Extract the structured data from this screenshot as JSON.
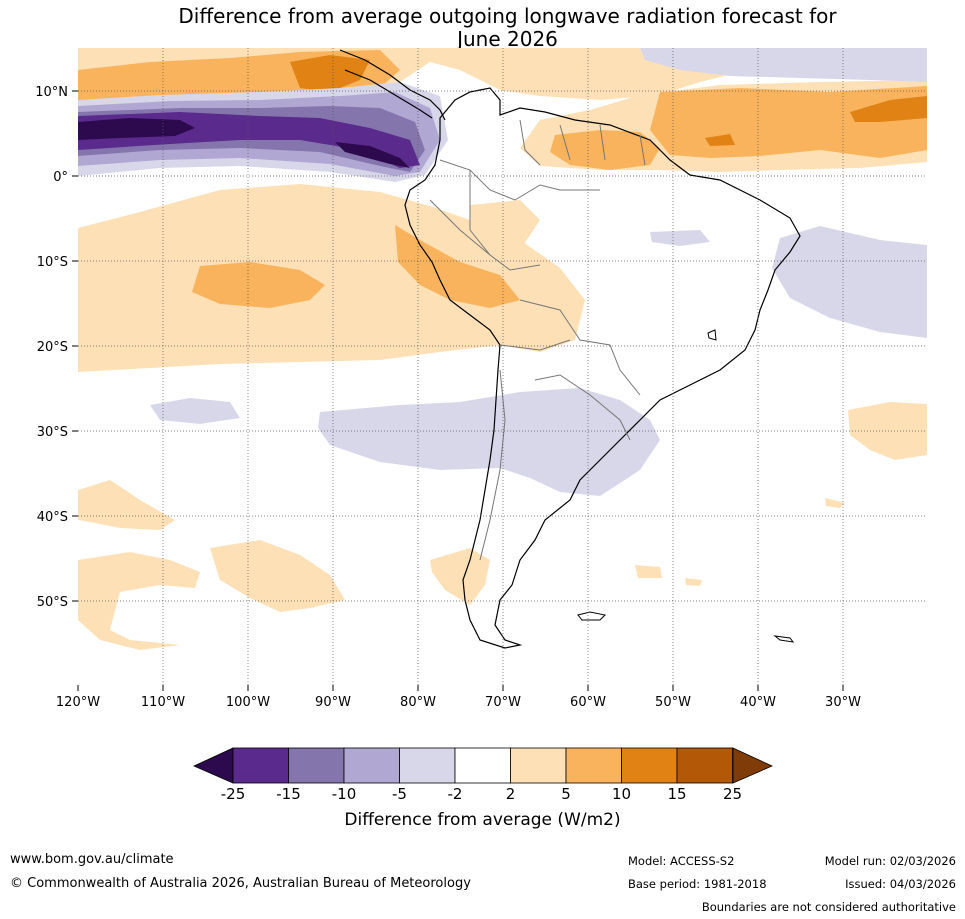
{
  "title": {
    "line1": "Difference from average outgoing longwave radiation forecast for",
    "line2": "June 2026"
  },
  "map": {
    "lat_labels": [
      "10°N",
      "0°",
      "10°S",
      "20°S",
      "30°S",
      "40°S",
      "50°S"
    ],
    "lon_labels": [
      "120°W",
      "110°W",
      "100°W",
      "90°W",
      "80°W",
      "70°W",
      "60°W",
      "50°W",
      "40°W",
      "30°W"
    ]
  },
  "legend": {
    "ticks": [
      "-25",
      "-15",
      "-10",
      "-5",
      "-2",
      "2",
      "5",
      "10",
      "15",
      "25"
    ],
    "colors": [
      "#2d0a4e",
      "#5a2a8c",
      "#8476ad",
      "#b0a8d3",
      "#d8d7ea",
      "#ffffff",
      "#fde0b6",
      "#f9b35c",
      "#e08214",
      "#b35806",
      "#7f3b08"
    ],
    "label": "Difference from average (W/m2)"
  },
  "footer": {
    "website": "www.bom.gov.au/climate",
    "copyright": "© Commonwealth of Australia 2026, Australian Bureau of Meteorology",
    "model": "Model: ACCESS-S2",
    "base_period": "Base period: 1981-2018",
    "model_run": "Model run: 02/03/2026",
    "issued": "Issued: 04/03/2026",
    "disclaimer": "Boundaries are not considered authoritative"
  }
}
